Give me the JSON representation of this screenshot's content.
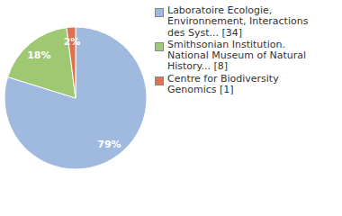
{
  "chart_data": {
    "type": "pie",
    "categories": [
      "Laboratoire Ecologie, Environnement, Interactions des Syst... [34]",
      "Smithsonian Institution. National Museum of Natural History... [8]",
      "Centre for Biodiversity Genomics [1]"
    ],
    "values": [
      79,
      18,
      2
    ],
    "value_labels": [
      "79%",
      "18%",
      "2%"
    ],
    "colors": [
      "#9fb9df",
      "#9fc872",
      "#e0704f"
    ],
    "data_labels": true,
    "legend": "right"
  }
}
